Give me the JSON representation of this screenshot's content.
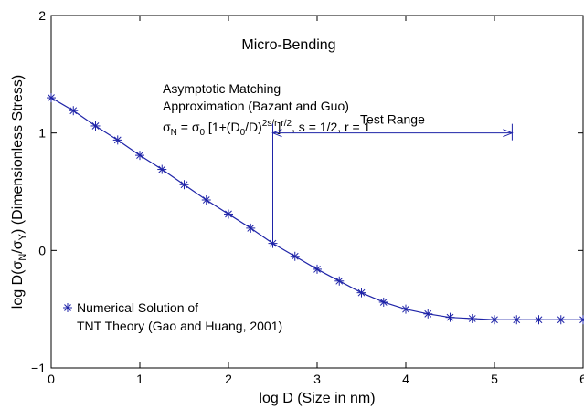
{
  "chart_data": {
    "type": "line",
    "title": "Micro-Bending",
    "xlabel": "log D (Size in nm)",
    "ylabel": {
      "prefix": "log D(σ",
      "sub1": "N",
      "mid": "/σ",
      "sub2": "Y",
      "suffix": ") (Dimensionless Stress)"
    },
    "xlim": [
      0,
      6
    ],
    "ylim": [
      -1,
      2
    ],
    "xticks": [
      0,
      1,
      2,
      3,
      4,
      5,
      6
    ],
    "yticks": [
      -1,
      0,
      1,
      2
    ],
    "grid": false,
    "series": [
      {
        "name": "Asymptotic Matching Approximation (Bazant and Guo)",
        "style": "solid line",
        "color": "#1f24a8",
        "x": [
          0,
          0.25,
          0.5,
          0.75,
          1.0,
          1.25,
          1.5,
          1.75,
          2.0,
          2.25,
          2.5,
          2.75,
          3.0,
          3.25,
          3.5,
          3.75,
          4.0,
          4.25,
          4.5,
          4.75,
          5.0,
          5.25,
          5.5,
          5.75,
          6.0
        ],
        "y": [
          1.3,
          1.19,
          1.06,
          0.94,
          0.81,
          0.69,
          0.56,
          0.43,
          0.31,
          0.19,
          0.06,
          -0.05,
          -0.16,
          -0.26,
          -0.36,
          -0.44,
          -0.5,
          -0.54,
          -0.57,
          -0.58,
          -0.59,
          -0.59,
          -0.59,
          -0.59,
          -0.59
        ]
      },
      {
        "name": "Numerical Solution of TNT Theory (Gao and Huang, 2001)",
        "style": "asterisk markers",
        "color": "#1f24a8",
        "x": [
          0,
          0.25,
          0.5,
          0.75,
          1.0,
          1.25,
          1.5,
          1.75,
          2.0,
          2.25,
          2.5,
          2.75,
          3.0,
          3.25,
          3.5,
          3.75,
          4.0,
          4.25,
          4.5,
          4.75,
          5.0,
          5.25,
          5.5,
          5.75,
          6.0
        ],
        "y": [
          1.3,
          1.19,
          1.06,
          0.94,
          0.81,
          0.69,
          0.56,
          0.43,
          0.31,
          0.19,
          0.06,
          -0.05,
          -0.16,
          -0.26,
          -0.36,
          -0.44,
          -0.5,
          -0.54,
          -0.57,
          -0.58,
          -0.59,
          -0.59,
          -0.59,
          -0.59,
          -0.59
        ]
      }
    ],
    "annotations": {
      "line_label_1": "Asymptotic Matching",
      "line_label_2": "Approximation (Bazant and Guo)",
      "formula": {
        "p1": "σ",
        "p1_sub": "N",
        "p2": " = σ",
        "p2_sub": "0",
        "p3": " [1+(D",
        "p3_sub": "0",
        "p4": "/D)",
        "p4_sup": "2s/r",
        "p5": "]",
        "p5_sup": "r/2",
        "p6": ", s = 1/2, r = 1"
      },
      "test_range": {
        "label": "Test Range",
        "x_start": 2.5,
        "x_end": 5.2,
        "y": 1.0
      },
      "legend_line_1": "Numerical Solution of",
      "legend_line_2": "TNT Theory (Gao and Huang, 2001)"
    }
  }
}
